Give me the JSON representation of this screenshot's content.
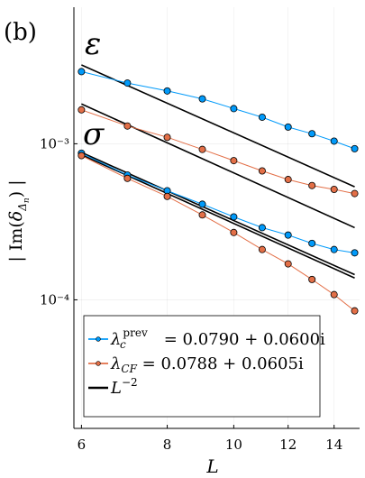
{
  "chart_data": {
    "type": "scatter",
    "panel_label": "(b)",
    "xlabel": "L",
    "ylabel": "| Im(δ_{Δ_n}) |",
    "xscale": "log",
    "yscale": "log",
    "xlim": [
      5.85,
      15.25
    ],
    "ylim": [
      1.5e-05,
      0.0075
    ],
    "xticks": [
      6,
      8,
      10,
      12,
      14
    ],
    "xtick_labels": [
      "6",
      "8",
      "10",
      "12",
      "14"
    ],
    "yticks": [
      0.0001,
      0.001
    ],
    "ytick_labels": [
      "10⁻⁴",
      "10⁻³"
    ],
    "grid": true,
    "legend_position": "bottom-left",
    "annotations": [
      {
        "text": "ε",
        "near": "upper group"
      },
      {
        "text": "σ",
        "near": "lower group"
      }
    ],
    "series": [
      {
        "name": "λ_c^prev = 0.0790 + 0.0600i",
        "color": "#009AFA",
        "groups": [
          {
            "label": "ε",
            "x": [
              6,
              7,
              8,
              9,
              10,
              11,
              12,
              13,
              14,
              15
            ],
            "y": [
              0.0029,
              0.00245,
              0.00218,
              0.00194,
              0.00168,
              0.00148,
              0.00128,
              0.00116,
              0.00104,
              0.00093
            ]
          },
          {
            "label": "σ",
            "x": [
              6,
              7,
              8,
              9,
              10,
              11,
              12,
              13,
              14,
              15
            ],
            "y": [
              0.00087,
              0.00063,
              0.0005,
              0.00041,
              0.00034,
              0.00029,
              0.00026,
              0.00023,
              0.00021,
              0.0002
            ]
          }
        ]
      },
      {
        "name": "λ_{CF} = 0.0788 + 0.0605i",
        "color": "#E36F47",
        "groups": [
          {
            "label": "ε",
            "x": [
              6,
              7,
              8,
              9,
              10,
              11,
              12,
              13,
              14,
              15
            ],
            "y": [
              0.00165,
              0.0013,
              0.0011,
              0.00092,
              0.00078,
              0.00067,
              0.00059,
              0.00054,
              0.00051,
              0.00048
            ]
          },
          {
            "label": "σ",
            "x": [
              6,
              7,
              8,
              9,
              10,
              11,
              12,
              13,
              14,
              15
            ],
            "y": [
              0.00084,
              0.0006,
              0.00046,
              0.00035,
              0.00027,
              0.00021,
              0.00017,
              0.000135,
              0.000108,
              8.5e-05
            ]
          }
        ]
      },
      {
        "name": "L^{-2}",
        "color": "#000000",
        "lines": [
          {
            "x": [
              6,
              15
            ],
            "y": [
              0.0032,
              0.00053
            ]
          },
          {
            "x": [
              6,
              15
            ],
            "y": [
              0.0018,
              0.00029
            ]
          },
          {
            "x": [
              6,
              15
            ],
            "y": [
              0.00088,
              0.000145
            ]
          },
          {
            "x": [
              6,
              15
            ],
            "y": [
              0.00085,
              0.000138
            ]
          }
        ]
      }
    ]
  },
  "legend": {
    "entries": [
      {
        "main": "λ",
        "sub": "c",
        "sup": "prev",
        "rest": " = 0.0790 + 0.0600i"
      },
      {
        "main": "λ",
        "sub": "CF",
        "sup": "",
        "rest": " = 0.0788 + 0.0605i"
      },
      {
        "main": "L",
        "sub": "",
        "sup": "−2",
        "rest": ""
      }
    ]
  }
}
